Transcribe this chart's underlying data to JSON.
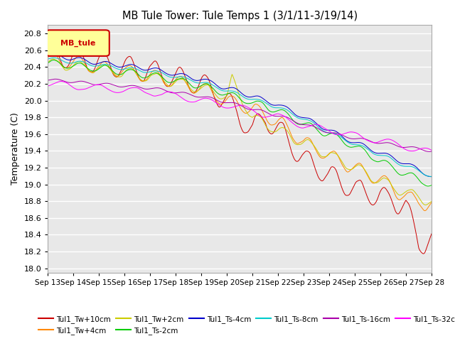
{
  "title": "MB Tule Tower: Tule Temps 1 (3/1/11-3/19/14)",
  "ylabel": "Temperature (C)",
  "ylim": [
    17.95,
    20.9
  ],
  "xlim": [
    0,
    15
  ],
  "yticks": [
    18.0,
    18.2,
    18.4,
    18.6,
    18.8,
    19.0,
    19.2,
    19.4,
    19.6,
    19.8,
    20.0,
    20.2,
    20.4,
    20.6,
    20.8
  ],
  "xtick_labels": [
    "Sep 13",
    "Sep 14",
    "Sep 15",
    "Sep 16",
    "Sep 17",
    "Sep 18",
    "Sep 19",
    "Sep 20",
    "Sep 21",
    "Sep 22",
    "Sep 23",
    "Sep 24",
    "Sep 25",
    "Sep 26",
    "Sep 27",
    "Sep 28"
  ],
  "series": [
    {
      "name": "Tul1_Tw+10cm",
      "color": "#cc0000"
    },
    {
      "name": "Tul1_Tw+4cm",
      "color": "#ff8800"
    },
    {
      "name": "Tul1_Tw+2cm",
      "color": "#cccc00"
    },
    {
      "name": "Tul1_Ts-2cm",
      "color": "#00cc00"
    },
    {
      "name": "Tul1_Ts-4cm",
      "color": "#0000cc"
    },
    {
      "name": "Tul1_Ts-8cm",
      "color": "#00cccc"
    },
    {
      "name": "Tul1_Ts-16cm",
      "color": "#aa00aa"
    },
    {
      "name": "Tul1_Ts-32cm",
      "color": "#ff00ff"
    }
  ],
  "legend_box_text": "MB_tule",
  "legend_box_color": "#cc0000",
  "legend_box_bg": "#ffff99",
  "bg_color": "#ffffff",
  "plot_bg": "#e8e8e8",
  "grid_color": "#ffffff"
}
